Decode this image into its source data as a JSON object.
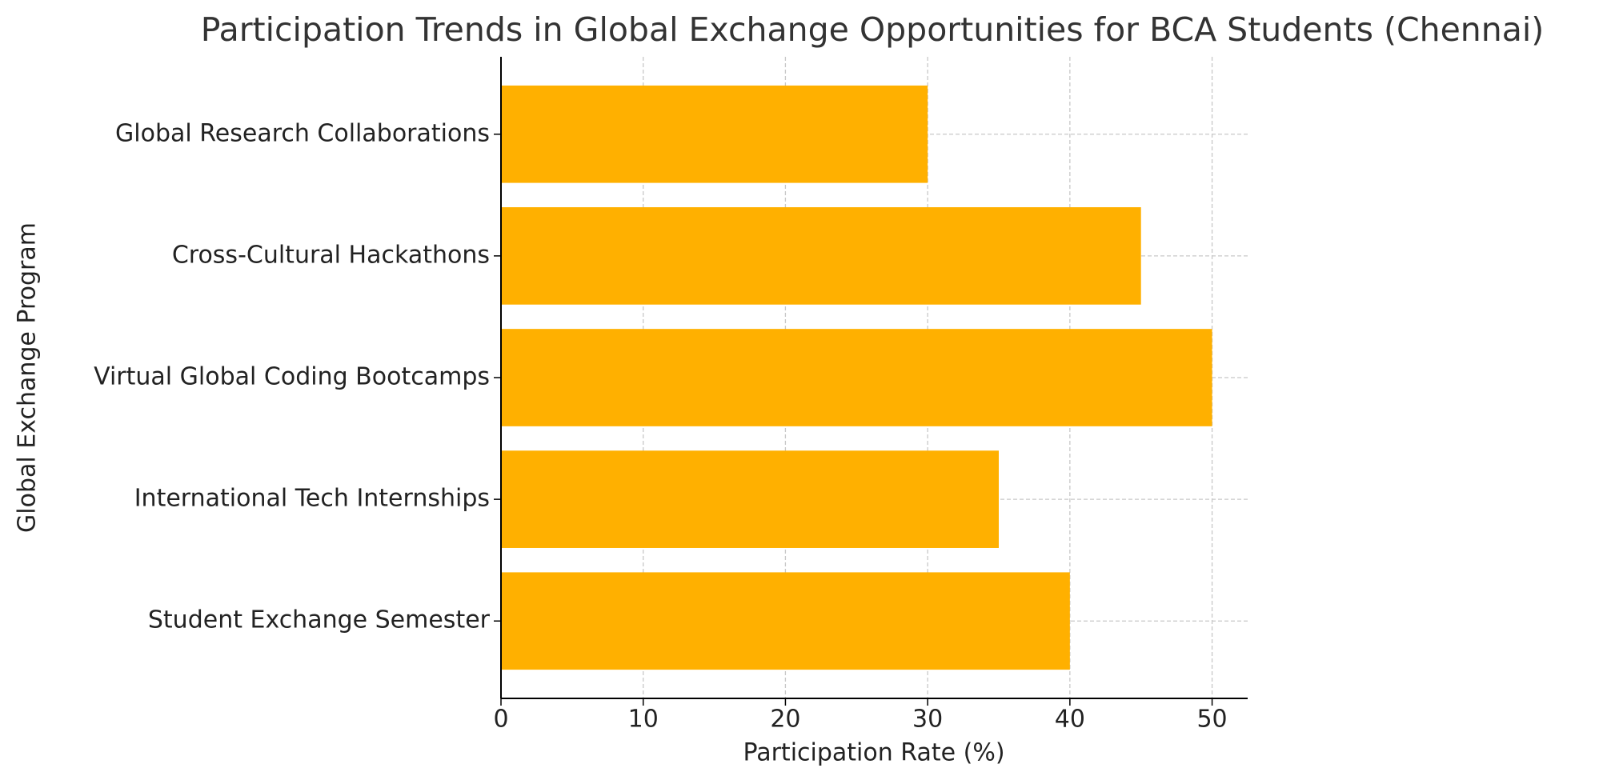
{
  "chart_data": {
    "type": "barh",
    "title": "Participation Trends in Global Exchange Opportunities for BCA Students (Chennai)",
    "x_label": "Participation Rate (%)",
    "y_label": "Global Exchange Program",
    "categories": [
      "Student Exchange Semester",
      "International Tech Internships",
      "Virtual Global Coding Bootcamps",
      "Cross-Cultural Hackathons",
      "Global Research Collaborations"
    ],
    "values": [
      40,
      35,
      50,
      45,
      30
    ],
    "color": "#ffb000",
    "xlim": [
      0,
      52.5
    ],
    "xticks": [
      0,
      10,
      20,
      30,
      40,
      50
    ],
    "grid": true
  }
}
